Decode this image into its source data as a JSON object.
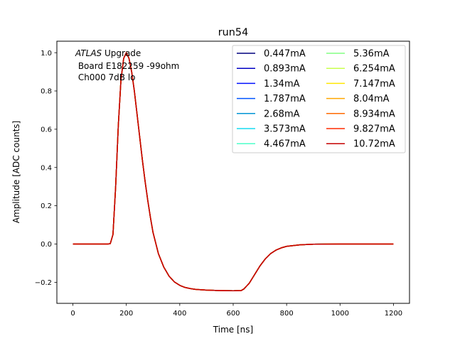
{
  "chart_data": {
    "type": "line",
    "title": "run54",
    "xlabel": "Time [ns]",
    "ylabel": "Amplitude [ADC counts]",
    "xlim": [
      -60,
      1260
    ],
    "ylim": [
      -0.31,
      1.06
    ],
    "xticks": [
      0,
      200,
      400,
      600,
      800,
      1000,
      1200
    ],
    "yticks": [
      -0.2,
      0.0,
      0.2,
      0.4,
      0.6,
      0.8,
      1.0
    ],
    "ytick_labels": [
      "−0.2",
      "0.0",
      "0.2",
      "0.4",
      "0.6",
      "0.8",
      "1.0"
    ],
    "grid": false,
    "legend": "top-right, 2 columns",
    "annotation": {
      "italic": "ATLAS",
      "line1_rest": " Upgrade",
      "line2": " Board E182259 -99ohm",
      "line3": " Ch000 7dB lo"
    },
    "x": [
      0,
      130,
      140,
      150,
      160,
      170,
      180,
      190,
      200,
      210,
      220,
      230,
      240,
      250,
      260,
      270,
      280,
      290,
      300,
      320,
      340,
      360,
      380,
      400,
      420,
      440,
      460,
      500,
      550,
      600,
      630,
      640,
      660,
      680,
      700,
      720,
      740,
      760,
      780,
      800,
      850,
      900,
      1000,
      1100,
      1200
    ],
    "series": [
      {
        "name": "0.447mA",
        "color": "#00007f",
        "values": [
          0,
          0,
          0.002,
          0.05,
          0.3,
          0.62,
          0.86,
          0.97,
          1.0,
          0.97,
          0.9,
          0.8,
          0.68,
          0.56,
          0.44,
          0.33,
          0.23,
          0.14,
          0.06,
          -0.05,
          -0.12,
          -0.168,
          -0.198,
          -0.216,
          -0.227,
          -0.233,
          -0.237,
          -0.241,
          -0.243,
          -0.244,
          -0.243,
          -0.235,
          -0.205,
          -0.16,
          -0.115,
          -0.078,
          -0.05,
          -0.032,
          -0.02,
          -0.012,
          -0.004,
          -0.001,
          0,
          0,
          0
        ]
      },
      {
        "name": "0.893mA",
        "color": "#0000c4",
        "values": [
          0,
          0,
          0.002,
          0.05,
          0.3,
          0.62,
          0.86,
          0.97,
          1.0,
          0.97,
          0.9,
          0.8,
          0.68,
          0.56,
          0.44,
          0.33,
          0.23,
          0.14,
          0.06,
          -0.05,
          -0.12,
          -0.168,
          -0.198,
          -0.216,
          -0.227,
          -0.233,
          -0.237,
          -0.241,
          -0.243,
          -0.244,
          -0.243,
          -0.235,
          -0.205,
          -0.16,
          -0.115,
          -0.078,
          -0.05,
          -0.032,
          -0.02,
          -0.012,
          -0.004,
          -0.001,
          0,
          0,
          0
        ]
      },
      {
        "name": "1.34mA",
        "color": "#0010ff",
        "values": [
          0,
          0,
          0.002,
          0.05,
          0.3,
          0.62,
          0.86,
          0.97,
          1.0,
          0.97,
          0.9,
          0.8,
          0.68,
          0.56,
          0.44,
          0.33,
          0.23,
          0.14,
          0.06,
          -0.05,
          -0.12,
          -0.168,
          -0.198,
          -0.216,
          -0.227,
          -0.233,
          -0.237,
          -0.241,
          -0.243,
          -0.244,
          -0.243,
          -0.235,
          -0.205,
          -0.16,
          -0.115,
          -0.078,
          -0.05,
          -0.032,
          -0.02,
          -0.012,
          -0.004,
          -0.001,
          0,
          0,
          0
        ]
      },
      {
        "name": "1.787mA",
        "color": "#0054ff",
        "values": [
          0,
          0,
          0.002,
          0.05,
          0.3,
          0.62,
          0.86,
          0.97,
          1.0,
          0.97,
          0.9,
          0.8,
          0.68,
          0.56,
          0.44,
          0.33,
          0.23,
          0.14,
          0.06,
          -0.05,
          -0.12,
          -0.168,
          -0.198,
          -0.216,
          -0.227,
          -0.233,
          -0.237,
          -0.241,
          -0.243,
          -0.244,
          -0.243,
          -0.235,
          -0.205,
          -0.16,
          -0.115,
          -0.078,
          -0.05,
          -0.032,
          -0.02,
          -0.012,
          -0.004,
          -0.001,
          0,
          0,
          0
        ]
      },
      {
        "name": "2.68mA",
        "color": "#0094d4",
        "values": [
          0,
          0,
          0.002,
          0.05,
          0.3,
          0.62,
          0.86,
          0.97,
          1.0,
          0.97,
          0.9,
          0.8,
          0.68,
          0.56,
          0.44,
          0.33,
          0.23,
          0.14,
          0.06,
          -0.05,
          -0.12,
          -0.168,
          -0.198,
          -0.216,
          -0.227,
          -0.233,
          -0.237,
          -0.241,
          -0.243,
          -0.244,
          -0.243,
          -0.235,
          -0.205,
          -0.16,
          -0.115,
          -0.078,
          -0.05,
          -0.032,
          -0.02,
          -0.012,
          -0.004,
          -0.001,
          0,
          0,
          0
        ]
      },
      {
        "name": "3.573mA",
        "color": "#16dcf0",
        "values": [
          0,
          0,
          0.002,
          0.05,
          0.3,
          0.62,
          0.86,
          0.97,
          1.0,
          0.97,
          0.9,
          0.8,
          0.68,
          0.56,
          0.44,
          0.33,
          0.23,
          0.14,
          0.06,
          -0.05,
          -0.12,
          -0.168,
          -0.198,
          -0.216,
          -0.227,
          -0.233,
          -0.237,
          -0.241,
          -0.243,
          -0.244,
          -0.243,
          -0.235,
          -0.205,
          -0.16,
          -0.115,
          -0.078,
          -0.05,
          -0.032,
          -0.02,
          -0.012,
          -0.004,
          -0.001,
          0,
          0,
          0
        ]
      },
      {
        "name": "4.467mA",
        "color": "#4dffc9",
        "values": [
          0,
          0,
          0.002,
          0.05,
          0.3,
          0.62,
          0.86,
          0.97,
          1.0,
          0.97,
          0.9,
          0.8,
          0.68,
          0.56,
          0.44,
          0.33,
          0.23,
          0.14,
          0.06,
          -0.05,
          -0.12,
          -0.168,
          -0.198,
          -0.216,
          -0.227,
          -0.233,
          -0.237,
          -0.241,
          -0.243,
          -0.244,
          -0.243,
          -0.235,
          -0.205,
          -0.16,
          -0.115,
          -0.078,
          -0.05,
          -0.032,
          -0.02,
          -0.012,
          -0.004,
          -0.001,
          0,
          0,
          0
        ]
      },
      {
        "name": "5.36mA",
        "color": "#83ff83",
        "values": [
          0,
          0,
          0.002,
          0.05,
          0.3,
          0.62,
          0.86,
          0.97,
          1.0,
          0.97,
          0.9,
          0.8,
          0.68,
          0.56,
          0.44,
          0.33,
          0.23,
          0.14,
          0.06,
          -0.05,
          -0.12,
          -0.168,
          -0.198,
          -0.216,
          -0.227,
          -0.233,
          -0.237,
          -0.241,
          -0.243,
          -0.244,
          -0.243,
          -0.235,
          -0.205,
          -0.16,
          -0.115,
          -0.078,
          -0.05,
          -0.032,
          -0.02,
          -0.012,
          -0.004,
          -0.001,
          0,
          0,
          0
        ]
      },
      {
        "name": "6.254mA",
        "color": "#c9ff4d",
        "values": [
          0,
          0,
          0.002,
          0.05,
          0.3,
          0.62,
          0.86,
          0.97,
          1.0,
          0.97,
          0.9,
          0.8,
          0.68,
          0.56,
          0.44,
          0.33,
          0.23,
          0.14,
          0.06,
          -0.05,
          -0.12,
          -0.168,
          -0.198,
          -0.216,
          -0.227,
          -0.233,
          -0.237,
          -0.241,
          -0.243,
          -0.244,
          -0.243,
          -0.235,
          -0.205,
          -0.16,
          -0.115,
          -0.078,
          -0.05,
          -0.032,
          -0.02,
          -0.012,
          -0.004,
          -0.001,
          0,
          0,
          0
        ]
      },
      {
        "name": "7.147mA",
        "color": "#ffe600",
        "values": [
          0,
          0,
          0.002,
          0.05,
          0.3,
          0.62,
          0.86,
          0.97,
          1.0,
          0.97,
          0.9,
          0.8,
          0.68,
          0.56,
          0.44,
          0.33,
          0.23,
          0.14,
          0.06,
          -0.05,
          -0.12,
          -0.168,
          -0.198,
          -0.216,
          -0.227,
          -0.233,
          -0.237,
          -0.241,
          -0.243,
          -0.244,
          -0.243,
          -0.235,
          -0.205,
          -0.16,
          -0.115,
          -0.078,
          -0.05,
          -0.032,
          -0.02,
          -0.012,
          -0.004,
          -0.001,
          0,
          0,
          0
        ]
      },
      {
        "name": "8.04mA",
        "color": "#ffa700",
        "values": [
          0,
          0,
          0.002,
          0.05,
          0.3,
          0.62,
          0.86,
          0.97,
          1.0,
          0.97,
          0.9,
          0.8,
          0.68,
          0.56,
          0.44,
          0.33,
          0.23,
          0.14,
          0.06,
          -0.05,
          -0.12,
          -0.168,
          -0.198,
          -0.216,
          -0.227,
          -0.233,
          -0.237,
          -0.241,
          -0.243,
          -0.244,
          -0.243,
          -0.235,
          -0.205,
          -0.16,
          -0.115,
          -0.078,
          -0.05,
          -0.032,
          -0.02,
          -0.012,
          -0.004,
          -0.001,
          0,
          0,
          0
        ]
      },
      {
        "name": "8.934mA",
        "color": "#ff6a00",
        "values": [
          0,
          0,
          0.002,
          0.05,
          0.3,
          0.62,
          0.86,
          0.97,
          1.0,
          0.97,
          0.9,
          0.8,
          0.68,
          0.56,
          0.44,
          0.33,
          0.23,
          0.14,
          0.06,
          -0.05,
          -0.12,
          -0.168,
          -0.198,
          -0.216,
          -0.227,
          -0.233,
          -0.237,
          -0.241,
          -0.243,
          -0.244,
          -0.243,
          -0.235,
          -0.205,
          -0.16,
          -0.115,
          -0.078,
          -0.05,
          -0.032,
          -0.02,
          -0.012,
          -0.004,
          -0.001,
          0,
          0,
          0
        ]
      },
      {
        "name": "9.827mA",
        "color": "#ff2a00",
        "values": [
          0,
          0,
          0.002,
          0.05,
          0.3,
          0.62,
          0.86,
          0.97,
          1.0,
          0.97,
          0.9,
          0.8,
          0.68,
          0.56,
          0.44,
          0.33,
          0.23,
          0.14,
          0.06,
          -0.05,
          -0.12,
          -0.168,
          -0.198,
          -0.216,
          -0.227,
          -0.233,
          -0.237,
          -0.241,
          -0.243,
          -0.244,
          -0.243,
          -0.235,
          -0.205,
          -0.16,
          -0.115,
          -0.078,
          -0.05,
          -0.032,
          -0.02,
          -0.012,
          -0.004,
          -0.001,
          0,
          0,
          0
        ]
      },
      {
        "name": "10.72mA",
        "color": "#c40000",
        "values": [
          0,
          0,
          0.002,
          0.05,
          0.3,
          0.62,
          0.86,
          0.97,
          1.0,
          0.97,
          0.9,
          0.8,
          0.68,
          0.56,
          0.44,
          0.33,
          0.23,
          0.14,
          0.06,
          -0.05,
          -0.12,
          -0.168,
          -0.198,
          -0.216,
          -0.227,
          -0.233,
          -0.237,
          -0.241,
          -0.243,
          -0.244,
          -0.243,
          -0.235,
          -0.205,
          -0.16,
          -0.115,
          -0.078,
          -0.05,
          -0.032,
          -0.02,
          -0.012,
          -0.004,
          -0.001,
          0,
          0,
          0
        ]
      }
    ]
  }
}
